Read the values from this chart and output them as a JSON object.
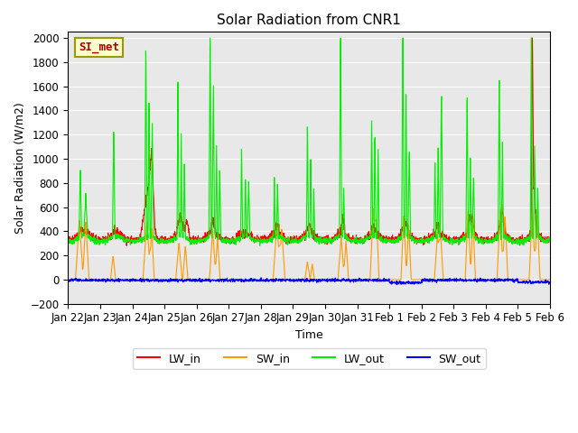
{
  "title": "Solar Radiation from CNR1",
  "xlabel": "Time",
  "ylabel": "Solar Radiation (W/m2)",
  "ylim": [
    -200,
    2050
  ],
  "yticks": [
    -200,
    0,
    200,
    400,
    600,
    800,
    1000,
    1200,
    1400,
    1600,
    1800,
    2000
  ],
  "xtick_labels": [
    "Jan 22",
    "Jan 23",
    "Jan 24",
    "Jan 25",
    "Jan 26",
    "Jan 27",
    "Jan 28",
    "Jan 29",
    "Jan 30",
    "Jan 31",
    "Feb 1",
    "Feb 2",
    "Feb 3",
    "Feb 4",
    "Feb 5",
    "Feb 6"
  ],
  "bg_color": "#e8e8e8",
  "si_met_label": "SI_met",
  "si_met_facecolor": "#ffffcc",
  "si_met_edgecolor": "#999900",
  "si_met_textcolor": "#aa0000",
  "line_colors": {
    "LW_in": "#ff0000",
    "SW_in": "#ff9900",
    "LW_out": "#00ee00",
    "SW_out": "#0000ff"
  },
  "title_fontsize": 11,
  "axis_label_fontsize": 9,
  "tick_fontsize": 8.5,
  "figsize": [
    6.4,
    4.8
  ],
  "dpi": 100
}
